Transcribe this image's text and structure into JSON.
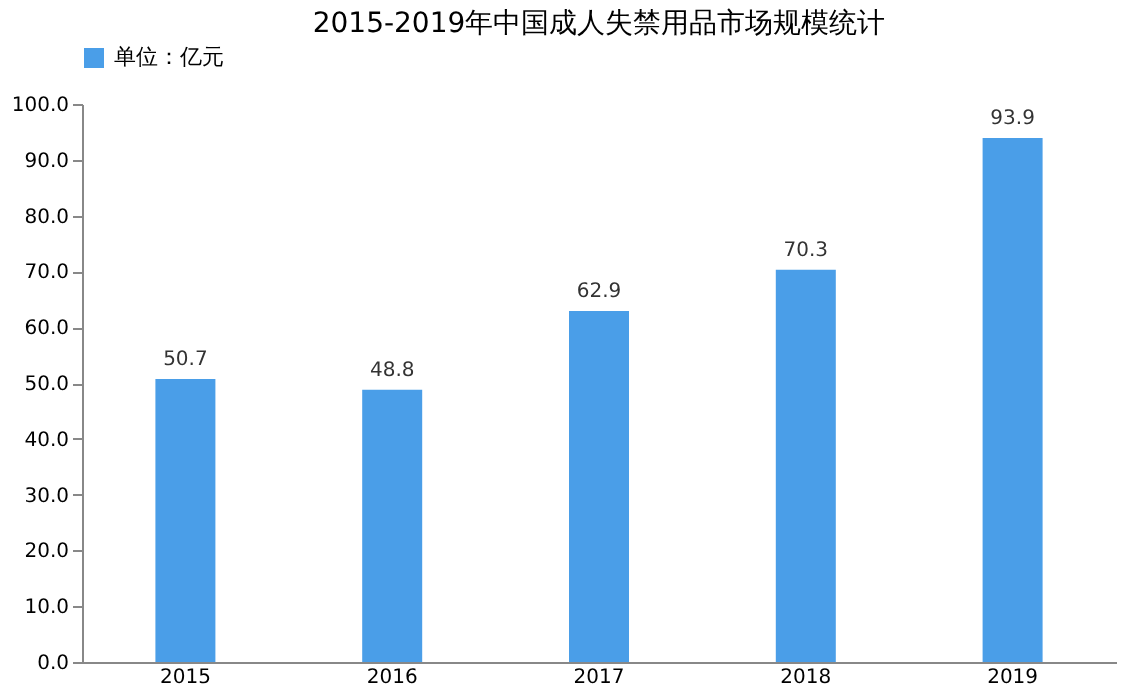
{
  "chart_data": {
    "type": "bar",
    "title": "2015-2019年中国成人失禁用品市场规模统计",
    "categories": [
      "2015",
      "2016",
      "2017",
      "2018",
      "2019"
    ],
    "series": [
      {
        "name": "单位：亿元",
        "color": "#4a9ee8",
        "values": [
          50.7,
          48.8,
          62.9,
          70.3,
          93.9
        ]
      }
    ],
    "ylim": [
      0,
      100
    ],
    "yticks": [
      {
        "value": 0,
        "label": "0.0"
      },
      {
        "value": 10,
        "label": "10.0"
      },
      {
        "value": 20,
        "label": "20.0"
      },
      {
        "value": 30,
        "label": "30.0"
      },
      {
        "value": 40,
        "label": "40.0"
      },
      {
        "value": 50,
        "label": "50.0"
      },
      {
        "value": 60,
        "label": "60.0"
      },
      {
        "value": 70,
        "label": "70.0"
      },
      {
        "value": 80,
        "label": "80.0"
      },
      {
        "value": 90,
        "label": "90.0"
      },
      {
        "value": 100,
        "label": "100.0"
      }
    ],
    "data_labels": true,
    "legend": "top",
    "grid": false
  }
}
